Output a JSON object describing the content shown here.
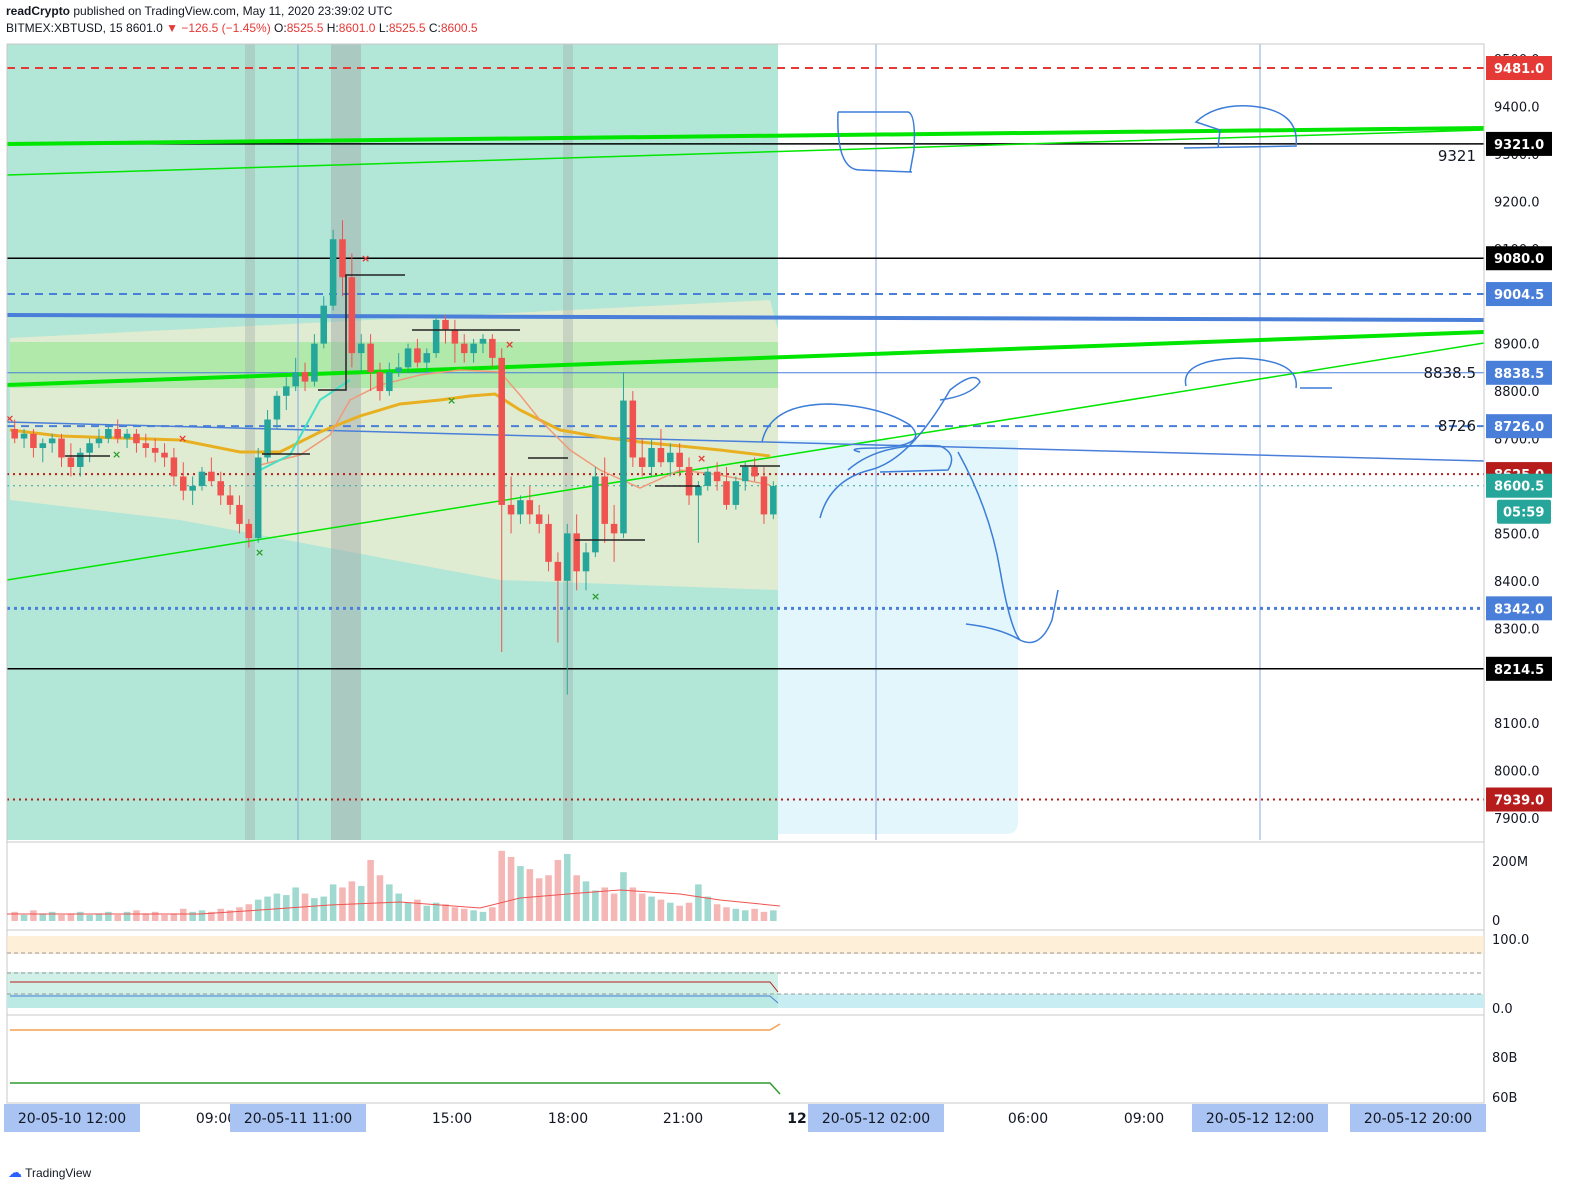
{
  "header": {
    "author": "readCrypto",
    "published": "published on TradingView.com, May 11, 2020 23:39:02 UTC",
    "symbol": "BITMEX:XBTUSD, 15",
    "last": "8601.0",
    "change": "▼ −126.5 (−1.45%)",
    "ohlc": [
      {
        "label": "O:",
        "value": "8525.5"
      },
      {
        "label": "H:",
        "value": "8601.0"
      },
      {
        "label": "L:",
        "value": "8525.5"
      },
      {
        "label": "C:",
        "value": "8600.5"
      }
    ]
  },
  "footer": {
    "brand": "TradingView"
  },
  "colors": {
    "up": "#26a69a",
    "down": "#ef5350",
    "green_line": "#00e600",
    "blue_line": "#4a7fd9",
    "red_dash": "#e53935",
    "maroon": "#b71c1c",
    "yellow": "#e8b020",
    "drawing": "#3b7dd8"
  },
  "chart_data": {
    "type": "candlestick",
    "symbol": "BITMEX:XBTUSD",
    "interval": "15",
    "ylim": [
      7880,
      9580
    ],
    "y_ticks": [
      7900,
      8000,
      8100,
      8200,
      8300,
      8400,
      8500,
      8600,
      8700,
      8800,
      8900,
      9000,
      9100,
      9200,
      9300,
      9400,
      9500
    ],
    "price_tick_labels": [
      "7900.0",
      "8000.0",
      "8100.0",
      "8200.0",
      "8300.0",
      "8400.0",
      "8500.0",
      "8600.0",
      "8700.0",
      "8800.0",
      "8900.0",
      "9000.0",
      "9100.0",
      "9200.0",
      "9300.0",
      "9400.0",
      "9500.0"
    ],
    "x_labels": [
      {
        "text": "20-05-10  12:00",
        "highlight": true
      },
      {
        "text": "09:00",
        "highlight": false
      },
      {
        "text": "20-05-11  11:00",
        "highlight": true
      },
      {
        "text": "15:00",
        "highlight": false
      },
      {
        "text": "18:00",
        "highlight": false
      },
      {
        "text": "21:00",
        "highlight": false
      },
      {
        "text": "12",
        "highlight": false
      },
      {
        "text": "20-05-12  02:00",
        "highlight": true
      },
      {
        "text": "06:00",
        "highlight": false
      },
      {
        "text": "09:00",
        "highlight": false
      },
      {
        "text": "20-05-12  12:00",
        "highlight": true
      },
      {
        "text": "20-05-12  20:00",
        "highlight": true
      }
    ],
    "price_lines": [
      {
        "value": 9481.0,
        "label": "9481.0",
        "style": "dashed",
        "color": "#e53935"
      },
      {
        "value": 9321.0,
        "label": "9321.0",
        "style": "solid",
        "color": "#000000",
        "note": "9321"
      },
      {
        "value": 9080.0,
        "label": "9080.0",
        "style": "solid",
        "color": "#000000"
      },
      {
        "value": 9004.5,
        "label": "9004.5",
        "style": "dashed",
        "color": "#4a7fd9"
      },
      {
        "value": 8838.5,
        "label": "8838.5",
        "style": "solid",
        "color": "#4a7fd9",
        "note": "8838.5"
      },
      {
        "value": 8726.0,
        "label": "8726.0",
        "style": "dashed",
        "color": "#4a7fd9",
        "note": "8726"
      },
      {
        "value": 8625.0,
        "label": "8625.0",
        "style": "dotted",
        "color": "#b71c1c"
      },
      {
        "value": 8600.5,
        "label": "8600.5",
        "style": "dotted",
        "color": "#26a69a"
      },
      {
        "value": 8342.0,
        "label": "8342.0",
        "style": "dotted",
        "color": "#4a7fd9"
      },
      {
        "value": 8214.5,
        "label": "8214.5",
        "style": "solid",
        "color": "#000000"
      },
      {
        "value": 7939.0,
        "label": "7939.0",
        "style": "dotted",
        "color": "#b71c1c"
      }
    ],
    "countdown": "05:59",
    "candles": [
      [
        8720,
        8740,
        8690,
        8700
      ],
      [
        8700,
        8720,
        8680,
        8710
      ],
      [
        8710,
        8720,
        8660,
        8680
      ],
      [
        8680,
        8700,
        8650,
        8690
      ],
      [
        8690,
        8710,
        8670,
        8700
      ],
      [
        8700,
        8710,
        8640,
        8660
      ],
      [
        8660,
        8690,
        8620,
        8640
      ],
      [
        8640,
        8680,
        8620,
        8670
      ],
      [
        8670,
        8700,
        8650,
        8690
      ],
      [
        8690,
        8720,
        8680,
        8700
      ],
      [
        8700,
        8730,
        8690,
        8720
      ],
      [
        8720,
        8740,
        8690,
        8700
      ],
      [
        8700,
        8720,
        8680,
        8710
      ],
      [
        8710,
        8720,
        8670,
        8690
      ],
      [
        8690,
        8710,
        8660,
        8680
      ],
      [
        8680,
        8700,
        8650,
        8670
      ],
      [
        8670,
        8690,
        8640,
        8660
      ],
      [
        8660,
        8680,
        8600,
        8620
      ],
      [
        8620,
        8650,
        8570,
        8590
      ],
      [
        8590,
        8620,
        8560,
        8600
      ],
      [
        8600,
        8640,
        8590,
        8630
      ],
      [
        8630,
        8660,
        8600,
        8610
      ],
      [
        8610,
        8630,
        8560,
        8580
      ],
      [
        8580,
        8600,
        8540,
        8560
      ],
      [
        8560,
        8580,
        8500,
        8520
      ],
      [
        8520,
        8530,
        8470,
        8490
      ],
      [
        8490,
        8680,
        8480,
        8660
      ],
      [
        8660,
        8760,
        8650,
        8740
      ],
      [
        8740,
        8800,
        8720,
        8790
      ],
      [
        8790,
        8830,
        8760,
        8810
      ],
      [
        8810,
        8870,
        8800,
        8840
      ],
      [
        8840,
        8860,
        8800,
        8820
      ],
      [
        8820,
        8920,
        8810,
        8900
      ],
      [
        8900,
        9000,
        8890,
        8980
      ],
      [
        8980,
        9140,
        8970,
        9120
      ],
      [
        9120,
        9160,
        9000,
        9040
      ],
      [
        9040,
        9090,
        8850,
        8880
      ],
      [
        8880,
        8920,
        8840,
        8900
      ],
      [
        8900,
        8920,
        8800,
        8840
      ],
      [
        8840,
        8860,
        8780,
        8800
      ],
      [
        8800,
        8860,
        8790,
        8840
      ],
      [
        8840,
        8880,
        8830,
        8850
      ],
      [
        8850,
        8900,
        8840,
        8890
      ],
      [
        8890,
        8910,
        8850,
        8860
      ],
      [
        8860,
        8890,
        8840,
        8880
      ],
      [
        8880,
        8960,
        8870,
        8950
      ],
      [
        8950,
        8960,
        8900,
        8930
      ],
      [
        8930,
        8950,
        8860,
        8900
      ],
      [
        8900,
        8920,
        8860,
        8880
      ],
      [
        8880,
        8910,
        8860,
        8900
      ],
      [
        8900,
        8920,
        8880,
        8910
      ],
      [
        8910,
        8920,
        8850,
        8870
      ],
      [
        8870,
        8890,
        8250,
        8560
      ],
      [
        8560,
        8620,
        8500,
        8540
      ],
      [
        8540,
        8580,
        8520,
        8570
      ],
      [
        8570,
        8600,
        8520,
        8540
      ],
      [
        8540,
        8560,
        8500,
        8520
      ],
      [
        8520,
        8540,
        8420,
        8440
      ],
      [
        8440,
        8460,
        8270,
        8400
      ],
      [
        8400,
        8520,
        8160,
        8500
      ],
      [
        8500,
        8540,
        8380,
        8420
      ],
      [
        8420,
        8480,
        8380,
        8460
      ],
      [
        8460,
        8640,
        8450,
        8620
      ],
      [
        8620,
        8660,
        8480,
        8520
      ],
      [
        8520,
        8560,
        8440,
        8500
      ],
      [
        8500,
        8840,
        8490,
        8780
      ],
      [
        8780,
        8800,
        8640,
        8660
      ],
      [
        8660,
        8700,
        8620,
        8640
      ],
      [
        8640,
        8700,
        8620,
        8680
      ],
      [
        8680,
        8720,
        8640,
        8650
      ],
      [
        8650,
        8690,
        8620,
        8670
      ],
      [
        8670,
        8690,
        8620,
        8640
      ],
      [
        8640,
        8660,
        8560,
        8580
      ],
      [
        8580,
        8610,
        8480,
        8600
      ],
      [
        8600,
        8640,
        8590,
        8630
      ],
      [
        8630,
        8650,
        8590,
        8610
      ],
      [
        8610,
        8640,
        8550,
        8560
      ],
      [
        8560,
        8620,
        8550,
        8610
      ],
      [
        8610,
        8650,
        8590,
        8640
      ],
      [
        8640,
        8660,
        8610,
        8620
      ],
      [
        8620,
        8640,
        8520,
        8540
      ],
      [
        8540,
        8610,
        8530,
        8600
      ]
    ],
    "volume_axis_labels": [
      "200M",
      "0"
    ],
    "volume": [
      30,
      20,
      35,
      25,
      30,
      20,
      25,
      30,
      20,
      25,
      30,
      20,
      30,
      35,
      25,
      30,
      20,
      25,
      40,
      30,
      35,
      30,
      40,
      35,
      45,
      55,
      70,
      80,
      90,
      85,
      110,
      90,
      75,
      80,
      120,
      110,
      130,
      115,
      200,
      150,
      120,
      90,
      60,
      70,
      50,
      60,
      55,
      45,
      40,
      35,
      30,
      45,
      230,
      210,
      180,
      170,
      140,
      150,
      200,
      220,
      150,
      130,
      100,
      110,
      90,
      160,
      110,
      90,
      80,
      70,
      60,
      50,
      60,
      120,
      80,
      55,
      45,
      40,
      35,
      40,
      30,
      35
    ],
    "oscillator_axis_labels": [
      "100.0",
      "0.0"
    ],
    "bottom_axis_labels": [
      "80B",
      "60B"
    ]
  }
}
